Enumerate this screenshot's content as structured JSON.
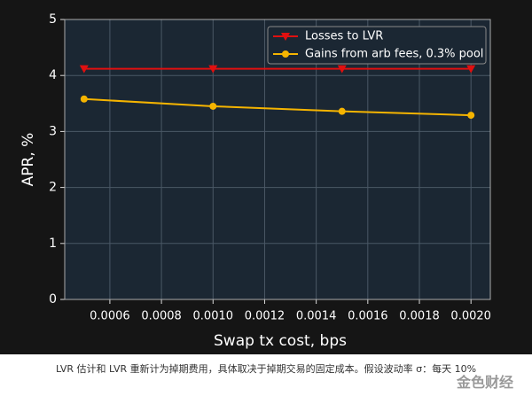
{
  "chart_data": {
    "type": "line",
    "xlabel": "Swap tx cost, bps",
    "ylabel": "APR, %",
    "x": [
      0.0005,
      0.001,
      0.0015,
      0.002
    ],
    "series": [
      {
        "name": "Losses to LVR",
        "color": "#e01010",
        "marker": "triangle-down",
        "values": [
          4.12,
          4.12,
          4.12,
          4.12
        ]
      },
      {
        "name": "Gains from arb fees, 0.3% pool",
        "color": "#f5b400",
        "marker": "circle",
        "values": [
          3.58,
          3.45,
          3.36,
          3.29
        ]
      }
    ],
    "xlim": [
      0.000425,
      0.002075
    ],
    "xticks": [
      {
        "value": 0.0006,
        "label": "0.0006"
      },
      {
        "value": 0.0008,
        "label": "0.0008"
      },
      {
        "value": 0.001,
        "label": "0.0010"
      },
      {
        "value": 0.0012,
        "label": "0.0012"
      },
      {
        "value": 0.0014,
        "label": "0.0014"
      },
      {
        "value": 0.0016,
        "label": "0.0016"
      },
      {
        "value": 0.0018,
        "label": "0.0018"
      },
      {
        "value": 0.002,
        "label": "0.0020"
      }
    ],
    "ylim": [
      0,
      5
    ],
    "yticks": [
      0,
      1,
      2,
      3,
      4,
      5
    ],
    "grid": true,
    "legend": "upper right"
  },
  "caption": "LVR 估计和 LVR 重新计为掉期费用，具体取决于掉期交易的固定成本。假设波动率 σ：每天 10%",
  "watermark": "金色财经"
}
